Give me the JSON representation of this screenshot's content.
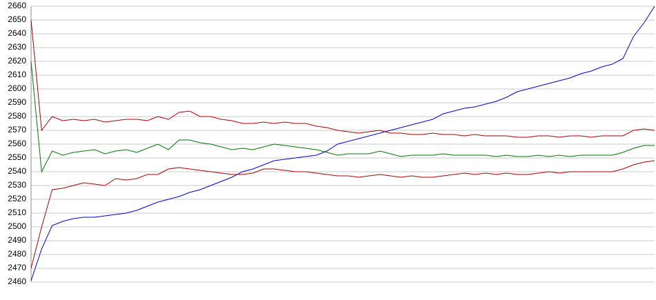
{
  "chart_data": {
    "type": "line",
    "categories": [
      null,
      null,
      null,
      null,
      null,
      null,
      null,
      null,
      null,
      null,
      null,
      null,
      null,
      null,
      null,
      null,
      null,
      null,
      null,
      null,
      null,
      null,
      null,
      null,
      null,
      null,
      null,
      null,
      null,
      null,
      null,
      null,
      null,
      null,
      null,
      null,
      null,
      null,
      null,
      null,
      null,
      null,
      null,
      null,
      null,
      null,
      null,
      null,
      null,
      null,
      null,
      null,
      null,
      null,
      null,
      null,
      null,
      null,
      null,
      null
    ],
    "series": [
      {
        "color": "#0000cc",
        "values": [
          2461,
          2484,
          2501,
          2504,
          2506,
          2507,
          2507,
          2508,
          2509,
          2510,
          2512,
          2515,
          2518,
          2520,
          2522,
          2525,
          2527,
          2530,
          2533,
          2536,
          2540,
          2542,
          2545,
          2548,
          2549,
          2550,
          2551,
          2552,
          2555,
          2560,
          2562,
          2564,
          2566,
          2568,
          2570,
          2572,
          2574,
          2576,
          2578,
          2582,
          2584,
          2586,
          2587,
          2589,
          2591,
          2594,
          2598,
          2600,
          2602,
          2604,
          2606,
          2608,
          2611,
          2613,
          2616,
          2618,
          2622,
          2638,
          2648,
          2660
        ]
      },
      {
        "color": "#aa0000",
        "values": [
          2650,
          2570,
          2580,
          2577,
          2578,
          2577,
          2578,
          2576,
          2577,
          2578,
          2578,
          2577,
          2580,
          2578,
          2583,
          2584,
          2580,
          2580,
          2578,
          2577,
          2575,
          2575,
          2576,
          2575,
          2576,
          2575,
          2575,
          2573,
          2572,
          2570,
          2569,
          2568,
          2569,
          2570,
          2568,
          2568,
          2567,
          2567,
          2568,
          2567,
          2567,
          2566,
          2567,
          2566,
          2566,
          2566,
          2565,
          2565,
          2566,
          2566,
          2565,
          2566,
          2566,
          2565,
          2566,
          2566,
          2566,
          2570,
          2571,
          2570
        ]
      },
      {
        "color": "#007700",
        "values": [
          2620,
          2540,
          2555,
          2552,
          2554,
          2555,
          2556,
          2553,
          2555,
          2556,
          2554,
          2557,
          2560,
          2556,
          2563,
          2563,
          2561,
          2560,
          2558,
          2556,
          2557,
          2556,
          2558,
          2560,
          2559,
          2558,
          2557,
          2556,
          2554,
          2552,
          2553,
          2553,
          2553,
          2555,
          2553,
          2551,
          2552,
          2552,
          2552,
          2553,
          2552,
          2552,
          2552,
          2552,
          2551,
          2552,
          2551,
          2551,
          2552,
          2551,
          2552,
          2551,
          2552,
          2552,
          2552,
          2552,
          2554,
          2557,
          2559,
          2559
        ]
      },
      {
        "color": "#aa0000",
        "values": [
          2470,
          2500,
          2527,
          2528,
          2530,
          2532,
          2531,
          2530,
          2535,
          2534,
          2535,
          2538,
          2538,
          2542,
          2543,
          2542,
          2541,
          2540,
          2539,
          2538,
          2538,
          2539,
          2542,
          2542,
          2541,
          2540,
          2540,
          2539,
          2538,
          2537,
          2537,
          2536,
          2537,
          2538,
          2537,
          2536,
          2537,
          2536,
          2536,
          2537,
          2538,
          2539,
          2538,
          2539,
          2538,
          2539,
          2538,
          2538,
          2539,
          2540,
          2539,
          2540,
          2540,
          2540,
          2540,
          2540,
          2542,
          2545,
          2547,
          2548
        ]
      }
    ],
    "ylim": [
      2460,
      2660
    ],
    "yticks": [
      2460,
      2470,
      2480,
      2490,
      2500,
      2510,
      2520,
      2530,
      2540,
      2550,
      2560,
      2570,
      2580,
      2590,
      2600,
      2610,
      2620,
      2630,
      2640,
      2650,
      2660
    ],
    "grid": true
  }
}
